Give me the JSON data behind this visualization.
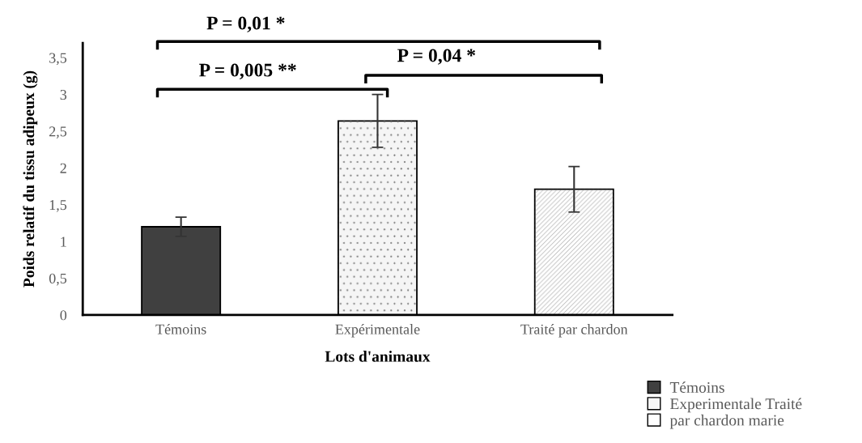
{
  "chart_data": {
    "type": "bar",
    "categories": [
      "Témoins",
      "Expérimentale",
      "Traité par chardon"
    ],
    "xlabel": "Lots d'animaux",
    "ylabel": "Poids relatif du tissu adipeux (g)",
    "series": [
      {
        "name": "Témoins",
        "color": "#404040",
        "values": [
          1.2,
          null,
          null
        ],
        "errors": [
          0.13,
          null,
          null
        ]
      },
      {
        "name": "Experimentale Traité",
        "color": "#f5f5f5",
        "values": [
          null,
          2.64,
          null
        ],
        "errors": [
          null,
          0.36,
          null
        ]
      },
      {
        "name": "par chardon marie",
        "color": "#ffffff",
        "values": [
          null,
          null,
          1.71
        ],
        "errors": [
          null,
          null,
          0.31
        ]
      }
    ],
    "ylim": [
      0,
      3.7
    ],
    "yticks": [
      {
        "value": 0,
        "label": "0"
      },
      {
        "value": 0.5,
        "label": "0,5"
      },
      {
        "value": 1,
        "label": "1"
      },
      {
        "value": 1.5,
        "label": "1,5"
      },
      {
        "value": 2,
        "label": "2"
      },
      {
        "value": 2.5,
        "label": "2,5"
      },
      {
        "value": 3,
        "label": "3"
      },
      {
        "value": 3.5,
        "label": "3,5"
      }
    ],
    "annotations": [
      "P = 0,01 *",
      "P = 0,005 **",
      "P = 0,04 *"
    ],
    "grid": false,
    "legend": "bottom right"
  }
}
